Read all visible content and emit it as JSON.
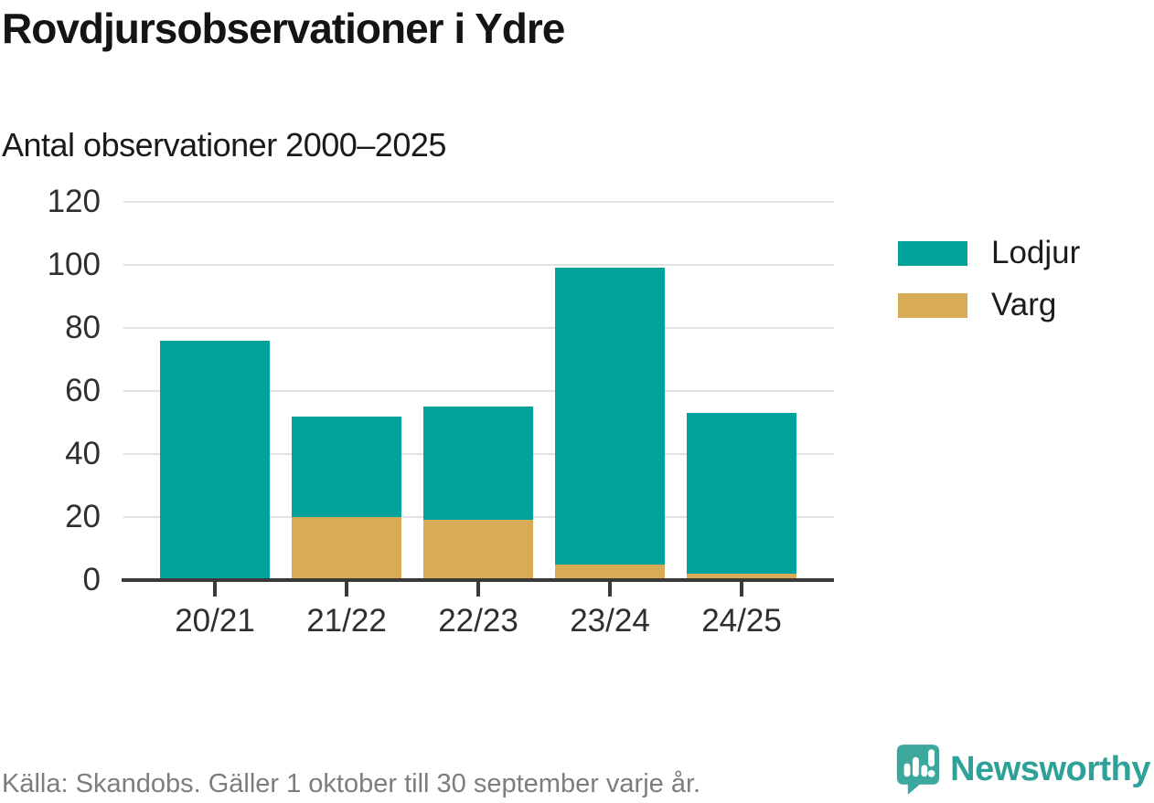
{
  "header": {
    "title": "Rovdjursobservationer i Ydre",
    "subtitle": "Antal observationer 2000–2025"
  },
  "chart_data": {
    "type": "bar",
    "stacked": true,
    "title": "Rovdjursobservationer i Ydre",
    "subtitle": "Antal observationer 2000–2025",
    "categories": [
      "20/21",
      "21/22",
      "22/23",
      "23/24",
      "24/25"
    ],
    "series": [
      {
        "name": "Lodjur",
        "color": "#00A39A",
        "values": [
          76,
          32,
          36,
          94,
          51
        ]
      },
      {
        "name": "Varg",
        "color": "#D8AB57",
        "values": [
          0,
          20,
          19,
          5,
          2
        ]
      }
    ],
    "stack_bottom_to_top": [
      "Varg",
      "Lodjur"
    ],
    "totals": [
      76,
      52,
      55,
      99,
      53
    ],
    "xlabel": "",
    "ylabel": "",
    "ylim": [
      0,
      120
    ],
    "yticks": [
      0,
      20,
      40,
      60,
      80,
      100,
      120
    ],
    "grid": true,
    "legend_position": "right"
  },
  "legend": {
    "items": [
      {
        "label": "Lodjur",
        "color": "#00A39A"
      },
      {
        "label": "Varg",
        "color": "#D8AB57"
      }
    ]
  },
  "footer": {
    "source": "Källa: Skandobs. Gäller 1 oktober till 30 september varje år.",
    "brand": "Newsworthy"
  },
  "colors": {
    "bar_lodjur": "#00A39A",
    "bar_varg": "#D8AB57",
    "axis": "#3A3A3A",
    "gridline": "#E2E2E2",
    "tick_label": "#2F2F2F",
    "title_text": "#141414",
    "source_text": "#7D7D7D",
    "brand_teal": "#2EA299",
    "logo_icon_teal": "#3BA79D"
  }
}
